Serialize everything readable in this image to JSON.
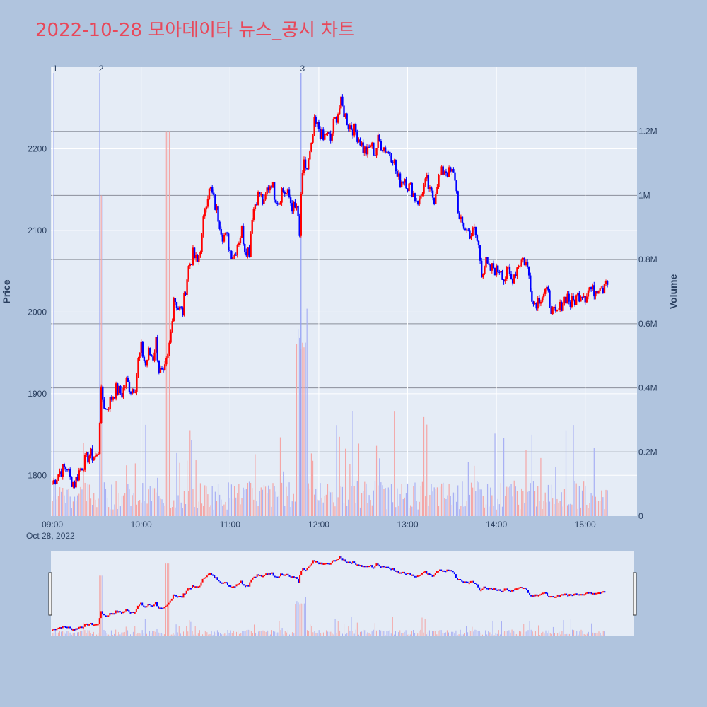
{
  "title": "2022-10-28 모아데이타 뉴스_공시 차트",
  "colors": {
    "up": "#ff0000",
    "down": "#0000ff",
    "plot_bg": "#e5ecf6",
    "page_bg": "#b0c4de",
    "title": "#e8485a"
  },
  "chart_data": {
    "type": "candlestick",
    "date_label": "Oct 28, 2022",
    "x_ticks": [
      "09:00",
      "10:00",
      "11:00",
      "12:00",
      "13:00",
      "14:00",
      "15:00"
    ],
    "ylabel": "Price",
    "y2label": "Volume",
    "y_ticks": [
      1800,
      1900,
      2000,
      2100,
      2200
    ],
    "y_range": [
      1750,
      2300
    ],
    "volume_ticks": [
      "0",
      "0.2M",
      "0.4M",
      "0.6M",
      "0.8M",
      "1M",
      "1.2M"
    ],
    "volume_range": [
      0,
      1400000
    ],
    "news_markers": [
      {
        "label": "1",
        "time": "09:01"
      },
      {
        "label": "2",
        "time": "09:32"
      },
      {
        "label": "3",
        "time": "11:48"
      }
    ],
    "price_path": [
      [
        "09:00",
        1790
      ],
      [
        "09:05",
        1805
      ],
      [
        "09:10",
        1810
      ],
      [
        "09:12",
        1795
      ],
      [
        "09:15",
        1790
      ],
      [
        "09:18",
        1805
      ],
      [
        "09:20",
        1812
      ],
      [
        "09:25",
        1825
      ],
      [
        "09:30",
        1822
      ],
      [
        "09:31",
        1830
      ],
      [
        "09:32",
        1870
      ],
      [
        "09:33",
        1900
      ],
      [
        "09:36",
        1880
      ],
      [
        "09:40",
        1895
      ],
      [
        "09:43",
        1905
      ],
      [
        "09:47",
        1900
      ],
      [
        "09:50",
        1915
      ],
      [
        "09:53",
        1905
      ],
      [
        "09:56",
        1910
      ],
      [
        "09:58",
        1940
      ],
      [
        "10:00",
        1955
      ],
      [
        "10:03",
        1935
      ],
      [
        "10:05",
        1950
      ],
      [
        "10:08",
        1945
      ],
      [
        "10:10",
        1965
      ],
      [
        "10:12",
        1930
      ],
      [
        "10:15",
        1920
      ],
      [
        "10:18",
        1945
      ],
      [
        "10:20",
        1975
      ],
      [
        "10:22",
        2020
      ],
      [
        "10:25",
        2005
      ],
      [
        "10:28",
        2000
      ],
      [
        "10:30",
        2030
      ],
      [
        "10:32",
        2055
      ],
      [
        "10:35",
        2070
      ],
      [
        "10:38",
        2060
      ],
      [
        "10:41",
        2090
      ],
      [
        "10:43",
        2130
      ],
      [
        "10:45",
        2145
      ],
      [
        "10:47",
        2150
      ],
      [
        "10:50",
        2130
      ],
      [
        "10:53",
        2110
      ],
      [
        "10:55",
        2095
      ],
      [
        "10:58",
        2090
      ],
      [
        "11:00",
        2075
      ],
      [
        "11:03",
        2070
      ],
      [
        "11:05",
        2085
      ],
      [
        "11:08",
        2100
      ],
      [
        "11:10",
        2080
      ],
      [
        "11:13",
        2075
      ],
      [
        "11:15",
        2120
      ],
      [
        "11:18",
        2140
      ],
      [
        "11:20",
        2145
      ],
      [
        "11:23",
        2130
      ],
      [
        "11:25",
        2150
      ],
      [
        "11:28",
        2160
      ],
      [
        "11:30",
        2145
      ],
      [
        "11:33",
        2135
      ],
      [
        "11:35",
        2150
      ],
      [
        "11:38",
        2145
      ],
      [
        "11:40",
        2140
      ],
      [
        "11:42",
        2130
      ],
      [
        "11:44",
        2125
      ],
      [
        "11:45",
        2130
      ],
      [
        "11:47",
        2090
      ],
      [
        "11:48",
        2145
      ],
      [
        "11:50",
        2180
      ],
      [
        "11:52",
        2175
      ],
      [
        "11:55",
        2200
      ],
      [
        "11:57",
        2230
      ],
      [
        "12:00",
        2225
      ],
      [
        "12:03",
        2210
      ],
      [
        "12:05",
        2220
      ],
      [
        "12:08",
        2210
      ],
      [
        "12:10",
        2230
      ],
      [
        "12:13",
        2245
      ],
      [
        "12:15",
        2255
      ],
      [
        "12:18",
        2240
      ],
      [
        "12:20",
        2230
      ],
      [
        "12:23",
        2225
      ],
      [
        "12:25",
        2220
      ],
      [
        "12:28",
        2210
      ],
      [
        "12:30",
        2200
      ],
      [
        "12:33",
        2195
      ],
      [
        "12:35",
        2205
      ],
      [
        "12:38",
        2195
      ],
      [
        "12:40",
        2210
      ],
      [
        "12:45",
        2200
      ],
      [
        "12:50",
        2190
      ],
      [
        "12:53",
        2165
      ],
      [
        "12:55",
        2160
      ],
      [
        "12:58",
        2165
      ],
      [
        "13:00",
        2155
      ],
      [
        "13:03",
        2150
      ],
      [
        "13:05",
        2140
      ],
      [
        "13:08",
        2135
      ],
      [
        "13:10",
        2150
      ],
      [
        "13:13",
        2160
      ],
      [
        "13:15",
        2145
      ],
      [
        "13:18",
        2140
      ],
      [
        "13:20",
        2160
      ],
      [
        "13:23",
        2170
      ],
      [
        "13:25",
        2175
      ],
      [
        "13:28",
        2170
      ],
      [
        "13:30",
        2170
      ],
      [
        "13:32",
        2165
      ],
      [
        "13:35",
        2110
      ],
      [
        "13:38",
        2105
      ],
      [
        "13:40",
        2100
      ],
      [
        "13:43",
        2095
      ],
      [
        "13:45",
        2100
      ],
      [
        "13:48",
        2080
      ],
      [
        "13:50",
        2050
      ],
      [
        "13:53",
        2060
      ],
      [
        "13:55",
        2050
      ],
      [
        "13:58",
        2055
      ],
      [
        "14:00",
        2050
      ],
      [
        "14:03",
        2055
      ],
      [
        "14:05",
        2040
      ],
      [
        "14:08",
        2050
      ],
      [
        "14:10",
        2040
      ],
      [
        "14:13",
        2050
      ],
      [
        "14:15",
        2060
      ],
      [
        "14:18",
        2065
      ],
      [
        "14:20",
        2060
      ],
      [
        "14:22",
        2045
      ],
      [
        "14:25",
        2010
      ],
      [
        "14:28",
        2015
      ],
      [
        "14:30",
        2020
      ],
      [
        "14:33",
        2025
      ],
      [
        "14:35",
        2020
      ],
      [
        "14:38",
        2000
      ],
      [
        "14:40",
        1995
      ],
      [
        "14:43",
        2005
      ],
      [
        "14:45",
        2015
      ],
      [
        "14:48",
        2020
      ],
      [
        "14:50",
        2010
      ],
      [
        "14:53",
        2015
      ],
      [
        "14:55",
        2020
      ],
      [
        "14:58",
        2025
      ],
      [
        "15:00",
        2020
      ],
      [
        "15:03",
        2030
      ],
      [
        "15:05",
        2025
      ],
      [
        "15:08",
        2030
      ],
      [
        "15:10",
        2035
      ],
      [
        "15:12",
        2030
      ],
      [
        "15:14",
        2045
      ],
      [
        "15:15",
        2035
      ]
    ]
  }
}
